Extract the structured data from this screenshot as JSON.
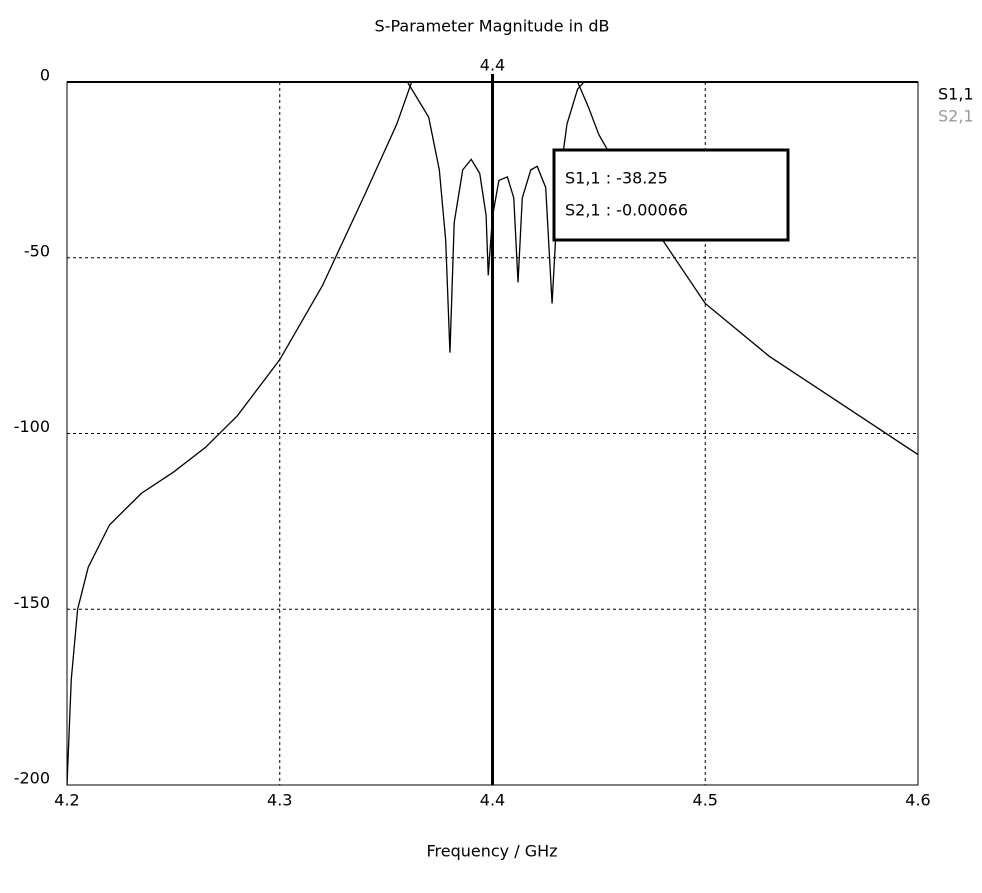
{
  "chart_data": {
    "type": "line",
    "title": "S-Parameter Magnitude in dB",
    "x_label": "Frequency / GHz",
    "xlim": [
      4.2,
      4.6
    ],
    "xticks": [
      4.2,
      4.3,
      4.4,
      4.5,
      4.6
    ],
    "ylim": [
      -200,
      0
    ],
    "yticks": [
      0,
      -50,
      -100,
      -150,
      -200
    ],
    "grid": true,
    "line_color": "#000000",
    "legend": "right",
    "marker": {
      "x": 4.4,
      "readouts": [
        "S1,1 : -38.25",
        "S2,1 : -0.00066"
      ]
    },
    "series": [
      {
        "name": "S1,1",
        "color": "#000000",
        "x": [
          4.2,
          4.36,
          4.37,
          4.375,
          4.378,
          4.38,
          4.382,
          4.386,
          4.39,
          4.394,
          4.397,
          4.398,
          4.4,
          4.403,
          4.407,
          4.41,
          4.412,
          4.414,
          4.418,
          4.421,
          4.425,
          4.428,
          4.431,
          4.435,
          4.44,
          4.443,
          4.6
        ],
        "values": [
          0,
          0,
          -10,
          -25,
          -45,
          -77,
          -40,
          -25,
          -22,
          -26,
          -38,
          -55,
          -38.25,
          -28,
          -27,
          -33,
          -57,
          -33,
          -25,
          -24,
          -30,
          -63,
          -30,
          -12,
          -2,
          0,
          0
        ]
      },
      {
        "name": "S2,1",
        "color": "#9a9a9a",
        "x": [
          4.2,
          4.202,
          4.205,
          4.21,
          4.22,
          4.235,
          4.25,
          4.265,
          4.28,
          4.3,
          4.32,
          4.34,
          4.355,
          4.362,
          4.44,
          4.445,
          4.45,
          4.47,
          4.5,
          4.53,
          4.56,
          4.6
        ],
        "values": [
          -200,
          -170,
          -150,
          -138,
          -126,
          -117,
          -111,
          -104,
          -95,
          -79,
          -58,
          -32,
          -12,
          0,
          0,
          -7,
          -15,
          -36,
          -63,
          -78,
          -90,
          -106
        ]
      }
    ]
  }
}
